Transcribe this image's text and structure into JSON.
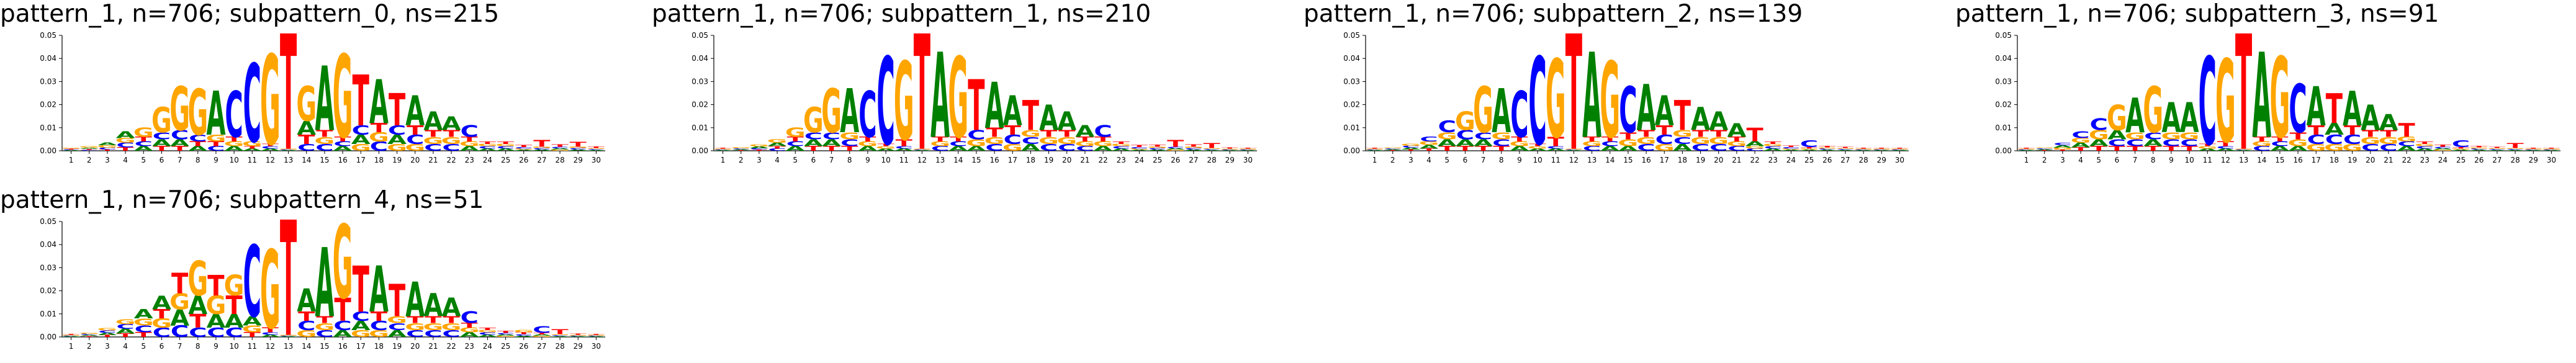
{
  "colors": {
    "A": "#008000",
    "C": "#0000ff",
    "G": "#ffa500",
    "T": "#ff0000"
  },
  "chart_data": [
    {
      "type": "sequence_logo",
      "title": "pattern_1, n=706; subpattern_0, ns=215",
      "yticks": [
        "0.00",
        "0.01",
        "0.02",
        "0.03",
        "0.04",
        "0.05"
      ],
      "ylim": [
        0,
        0.05
      ],
      "positions": [
        1,
        2,
        3,
        4,
        5,
        6,
        7,
        8,
        9,
        10,
        11,
        12,
        13,
        14,
        15,
        16,
        17,
        18,
        19,
        20,
        21,
        22,
        23,
        24,
        25,
        26,
        27,
        28,
        29,
        30
      ],
      "heights": [
        {
          "A": 0.0003,
          "C": 0.0003,
          "G": 0.0004,
          "T": 0.0003
        },
        {
          "A": 0.0005,
          "C": 0.0004,
          "G": 0.0006,
          "T": 0.0004
        },
        {
          "A": 0.0012,
          "C": 0.0008,
          "G": 0.001,
          "T": 0.0006
        },
        {
          "A": 0.003,
          "C": 0.002,
          "G": 0.002,
          "T": 0.0015
        },
        {
          "A": 0.002,
          "C": 0.002,
          "G": 0.004,
          "T": 0.002
        },
        {
          "A": 0.003,
          "C": 0.003,
          "G": 0.011,
          "T": 0.002
        },
        {
          "A": 0.003,
          "C": 0.004,
          "G": 0.019,
          "T": 0.002
        },
        {
          "A": 0.002,
          "C": 0.003,
          "G": 0.02,
          "T": 0.002
        },
        {
          "A": 0.019,
          "C": 0.002,
          "G": 0.003,
          "T": 0.002
        },
        {
          "A": 0.002,
          "C": 0.02,
          "G": 0.002,
          "T": 0.002
        },
        {
          "A": 0.001,
          "C": 0.034,
          "G": 0.002,
          "T": 0.001
        },
        {
          "A": 0.001,
          "C": 0.001,
          "G": 0.039,
          "T": 0.001
        },
        {
          "A": 0.0003,
          "C": 0.0003,
          "G": 0.0003,
          "T": 0.05
        },
        {
          "A": 0.006,
          "C": 0.003,
          "G": 0.015,
          "T": 0.004
        },
        {
          "A": 0.028,
          "C": 0.003,
          "G": 0.003,
          "T": 0.003
        },
        {
          "A": 0.002,
          "C": 0.002,
          "G": 0.036,
          "T": 0.002
        },
        {
          "A": 0.004,
          "C": 0.004,
          "G": 0.003,
          "T": 0.022
        },
        {
          "A": 0.019,
          "C": 0.004,
          "G": 0.004,
          "T": 0.004
        },
        {
          "A": 0.004,
          "C": 0.004,
          "G": 0.003,
          "T": 0.014
        },
        {
          "A": 0.013,
          "C": 0.004,
          "G": 0.003,
          "T": 0.004
        },
        {
          "A": 0.008,
          "C": 0.003,
          "G": 0.003,
          "T": 0.003
        },
        {
          "A": 0.006,
          "C": 0.003,
          "G": 0.003,
          "T": 0.003
        },
        {
          "A": 0.002,
          "C": 0.005,
          "G": 0.002,
          "T": 0.002
        },
        {
          "A": 0.001,
          "C": 0.001,
          "G": 0.001,
          "T": 0.001
        },
        {
          "A": 0.001,
          "C": 0.001,
          "G": 0.001,
          "T": 0.001
        },
        {
          "A": 0.0005,
          "C": 0.0006,
          "G": 0.0005,
          "T": 0.0008
        },
        {
          "A": 0.0006,
          "C": 0.0006,
          "G": 0.0006,
          "T": 0.003
        },
        {
          "A": 0.0006,
          "C": 0.0006,
          "G": 0.0005,
          "T": 0.001
        },
        {
          "A": 0.0006,
          "C": 0.0006,
          "G": 0.0006,
          "T": 0.002
        },
        {
          "A": 0.0004,
          "C": 0.0004,
          "G": 0.0004,
          "T": 0.0006
        }
      ]
    },
    {
      "type": "sequence_logo",
      "title": "pattern_1, n=706; subpattern_1, ns=210",
      "yticks": [
        "0.00",
        "0.01",
        "0.02",
        "0.03",
        "0.04",
        "0.05"
      ],
      "ylim": [
        0,
        0.05
      ],
      "positions": [
        1,
        2,
        3,
        4,
        5,
        6,
        7,
        8,
        9,
        10,
        11,
        12,
        13,
        14,
        15,
        16,
        17,
        18,
        19,
        20,
        21,
        22,
        23,
        24,
        25,
        26,
        27,
        28,
        29,
        30
      ],
      "heights": [
        {
          "A": 0.0003,
          "C": 0.0003,
          "G": 0.0003,
          "T": 0.0003
        },
        {
          "A": 0.0004,
          "C": 0.0004,
          "G": 0.0005,
          "T": 0.0003
        },
        {
          "A": 0.0008,
          "C": 0.0006,
          "G": 0.0008,
          "T": 0.0005
        },
        {
          "A": 0.0015,
          "C": 0.001,
          "G": 0.0015,
          "T": 0.001
        },
        {
          "A": 0.002,
          "C": 0.002,
          "G": 0.004,
          "T": 0.002
        },
        {
          "A": 0.003,
          "C": 0.003,
          "G": 0.011,
          "T": 0.002
        },
        {
          "A": 0.003,
          "C": 0.003,
          "G": 0.019,
          "T": 0.002
        },
        {
          "A": 0.019,
          "C": 0.003,
          "G": 0.003,
          "T": 0.002
        },
        {
          "A": 0.002,
          "C": 0.02,
          "G": 0.002,
          "T": 0.002
        },
        {
          "A": 0.001,
          "C": 0.038,
          "G": 0.001,
          "T": 0.001
        },
        {
          "A": 0.001,
          "C": 0.001,
          "G": 0.034,
          "T": 0.003
        },
        {
          "A": 0.0003,
          "C": 0.0003,
          "G": 0.0003,
          "T": 0.05
        },
        {
          "A": 0.037,
          "C": 0.002,
          "G": 0.002,
          "T": 0.002
        },
        {
          "A": 0.002,
          "C": 0.002,
          "G": 0.035,
          "T": 0.002
        },
        {
          "A": 0.002,
          "C": 0.004,
          "G": 0.003,
          "T": 0.022
        },
        {
          "A": 0.02,
          "C": 0.003,
          "G": 0.003,
          "T": 0.004
        },
        {
          "A": 0.013,
          "C": 0.004,
          "G": 0.003,
          "T": 0.004
        },
        {
          "A": 0.003,
          "C": 0.003,
          "G": 0.003,
          "T": 0.013
        },
        {
          "A": 0.011,
          "C": 0.003,
          "G": 0.003,
          "T": 0.003
        },
        {
          "A": 0.008,
          "C": 0.003,
          "G": 0.003,
          "T": 0.003
        },
        {
          "A": 0.005,
          "C": 0.002,
          "G": 0.002,
          "T": 0.002
        },
        {
          "A": 0.002,
          "C": 0.005,
          "G": 0.002,
          "T": 0.002
        },
        {
          "A": 0.001,
          "C": 0.001,
          "G": 0.001,
          "T": 0.001
        },
        {
          "A": 0.0005,
          "C": 0.0006,
          "G": 0.0005,
          "T": 0.0008
        },
        {
          "A": 0.0006,
          "C": 0.0006,
          "G": 0.0006,
          "T": 0.0008
        },
        {
          "A": 0.0006,
          "C": 0.0006,
          "G": 0.0005,
          "T": 0.003
        },
        {
          "A": 0.0006,
          "C": 0.0006,
          "G": 0.0006,
          "T": 0.001
        },
        {
          "A": 0.0004,
          "C": 0.0004,
          "G": 0.0004,
          "T": 0.002
        },
        {
          "A": 0.0003,
          "C": 0.0003,
          "G": 0.0003,
          "T": 0.0005
        },
        {
          "A": 0.0003,
          "C": 0.0003,
          "G": 0.0003,
          "T": 0.0004
        }
      ]
    },
    {
      "type": "sequence_logo",
      "title": "pattern_1, n=706; subpattern_2, ns=139",
      "yticks": [
        "0.00",
        "0.01",
        "0.02",
        "0.03",
        "0.04",
        "0.05"
      ],
      "ylim": [
        0,
        0.05
      ],
      "positions": [
        1,
        2,
        3,
        4,
        5,
        6,
        7,
        8,
        9,
        10,
        11,
        12,
        13,
        14,
        15,
        16,
        17,
        18,
        19,
        20,
        21,
        22,
        23,
        24,
        25,
        26,
        27,
        28,
        29,
        30
      ],
      "heights": [
        {
          "A": 0.0003,
          "C": 0.0003,
          "G": 0.0003,
          "T": 0.0003
        },
        {
          "A": 0.0004,
          "C": 0.0004,
          "G": 0.0004,
          "T": 0.0003
        },
        {
          "A": 0.0008,
          "C": 0.0008,
          "G": 0.0008,
          "T": 0.0006
        },
        {
          "A": 0.0015,
          "C": 0.002,
          "G": 0.0015,
          "T": 0.001
        },
        {
          "A": 0.003,
          "C": 0.005,
          "G": 0.003,
          "T": 0.002
        },
        {
          "A": 0.003,
          "C": 0.004,
          "G": 0.008,
          "T": 0.002
        },
        {
          "A": 0.003,
          "C": 0.003,
          "G": 0.02,
          "T": 0.002
        },
        {
          "A": 0.019,
          "C": 0.003,
          "G": 0.003,
          "T": 0.002
        },
        {
          "A": 0.002,
          "C": 0.02,
          "G": 0.002,
          "T": 0.002
        },
        {
          "A": 0.001,
          "C": 0.038,
          "G": 0.001,
          "T": 0.001
        },
        {
          "A": 0.001,
          "C": 0.001,
          "G": 0.034,
          "T": 0.004
        },
        {
          "A": 0.0003,
          "C": 0.0003,
          "G": 0.0003,
          "T": 0.05
        },
        {
          "A": 0.037,
          "C": 0.002,
          "G": 0.002,
          "T": 0.002
        },
        {
          "A": 0.002,
          "C": 0.002,
          "G": 0.033,
          "T": 0.002
        },
        {
          "A": 0.002,
          "C": 0.02,
          "G": 0.003,
          "T": 0.003
        },
        {
          "A": 0.02,
          "C": 0.003,
          "G": 0.003,
          "T": 0.003
        },
        {
          "A": 0.013,
          "C": 0.004,
          "G": 0.003,
          "T": 0.004
        },
        {
          "A": 0.003,
          "C": 0.003,
          "G": 0.003,
          "T": 0.013
        },
        {
          "A": 0.01,
          "C": 0.003,
          "G": 0.003,
          "T": 0.003
        },
        {
          "A": 0.008,
          "C": 0.003,
          "G": 0.003,
          "T": 0.003
        },
        {
          "A": 0.006,
          "C": 0.002,
          "G": 0.002,
          "T": 0.002
        },
        {
          "A": 0.002,
          "C": 0.001,
          "G": 0.001,
          "T": 0.006
        },
        {
          "A": 0.001,
          "C": 0.001,
          "G": 0.001,
          "T": 0.001
        },
        {
          "A": 0.0005,
          "C": 0.0006,
          "G": 0.0005,
          "T": 0.0006
        },
        {
          "A": 0.0005,
          "C": 0.003,
          "G": 0.0005,
          "T": 0.0006
        },
        {
          "A": 0.0005,
          "C": 0.0005,
          "G": 0.0005,
          "T": 0.0006
        },
        {
          "A": 0.0004,
          "C": 0.0004,
          "G": 0.0004,
          "T": 0.0005
        },
        {
          "A": 0.0003,
          "C": 0.0003,
          "G": 0.0003,
          "T": 0.0004
        },
        {
          "A": 0.0003,
          "C": 0.0003,
          "G": 0.0003,
          "T": 0.0003
        },
        {
          "A": 0.0003,
          "C": 0.0003,
          "G": 0.0003,
          "T": 0.0003
        }
      ]
    },
    {
      "type": "sequence_logo",
      "title": "pattern_1, n=706; subpattern_3, ns=91",
      "yticks": [
        "0.00",
        "0.01",
        "0.02",
        "0.03",
        "0.04",
        "0.05"
      ],
      "ylim": [
        0,
        0.05
      ],
      "positions": [
        1,
        2,
        3,
        4,
        5,
        6,
        7,
        8,
        9,
        10,
        11,
        12,
        13,
        14,
        15,
        16,
        17,
        18,
        19,
        20,
        21,
        22,
        23,
        24,
        25,
        26,
        27,
        28,
        29,
        30
      ],
      "heights": [
        {
          "A": 0.0003,
          "C": 0.0003,
          "G": 0.0003,
          "T": 0.0003
        },
        {
          "A": 0.0004,
          "C": 0.0004,
          "G": 0.0004,
          "T": 0.0003
        },
        {
          "A": 0.001,
          "C": 0.001,
          "G": 0.0008,
          "T": 0.0006
        },
        {
          "A": 0.002,
          "C": 0.003,
          "G": 0.002,
          "T": 0.0015
        },
        {
          "A": 0.003,
          "C": 0.005,
          "G": 0.004,
          "T": 0.002
        },
        {
          "A": 0.004,
          "C": 0.003,
          "G": 0.011,
          "T": 0.002
        },
        {
          "A": 0.015,
          "C": 0.003,
          "G": 0.003,
          "T": 0.002
        },
        {
          "A": 0.003,
          "C": 0.003,
          "G": 0.02,
          "T": 0.002
        },
        {
          "A": 0.013,
          "C": 0.003,
          "G": 0.003,
          "T": 0.002
        },
        {
          "A": 0.013,
          "C": 0.003,
          "G": 0.003,
          "T": 0.002
        },
        {
          "A": 0.001,
          "C": 0.038,
          "G": 0.001,
          "T": 0.001
        },
        {
          "A": 0.001,
          "C": 0.001,
          "G": 0.036,
          "T": 0.002
        },
        {
          "A": 0.0003,
          "C": 0.0003,
          "G": 0.0003,
          "T": 0.05
        },
        {
          "A": 0.037,
          "C": 0.002,
          "G": 0.002,
          "T": 0.002
        },
        {
          "A": 0.002,
          "C": 0.002,
          "G": 0.035,
          "T": 0.002
        },
        {
          "A": 0.002,
          "C": 0.021,
          "G": 0.003,
          "T": 0.003
        },
        {
          "A": 0.017,
          "C": 0.004,
          "G": 0.003,
          "T": 0.004
        },
        {
          "A": 0.005,
          "C": 0.004,
          "G": 0.003,
          "T": 0.013
        },
        {
          "A": 0.015,
          "C": 0.004,
          "G": 0.003,
          "T": 0.004
        },
        {
          "A": 0.011,
          "C": 0.003,
          "G": 0.003,
          "T": 0.003
        },
        {
          "A": 0.007,
          "C": 0.003,
          "G": 0.003,
          "T": 0.003
        },
        {
          "A": 0.002,
          "C": 0.002,
          "G": 0.002,
          "T": 0.006
        },
        {
          "A": 0.001,
          "C": 0.001,
          "G": 0.001,
          "T": 0.001
        },
        {
          "A": 0.0006,
          "C": 0.0006,
          "G": 0.0005,
          "T": 0.0008
        },
        {
          "A": 0.0005,
          "C": 0.003,
          "G": 0.0005,
          "T": 0.0006
        },
        {
          "A": 0.0005,
          "C": 0.0005,
          "G": 0.0005,
          "T": 0.0006
        },
        {
          "A": 0.0004,
          "C": 0.0004,
          "G": 0.0004,
          "T": 0.0005
        },
        {
          "A": 0.0004,
          "C": 0.0004,
          "G": 0.0004,
          "T": 0.002
        },
        {
          "A": 0.0003,
          "C": 0.0003,
          "G": 0.0003,
          "T": 0.0004
        },
        {
          "A": 0.0003,
          "C": 0.0003,
          "G": 0.0003,
          "T": 0.0003
        }
      ]
    },
    {
      "type": "sequence_logo",
      "title": "pattern_1, n=706; subpattern_4, ns=51",
      "yticks": [
        "0.00",
        "0.01",
        "0.02",
        "0.03",
        "0.04",
        "0.05"
      ],
      "ylim": [
        0,
        0.05
      ],
      "positions": [
        1,
        2,
        3,
        4,
        5,
        6,
        7,
        8,
        9,
        10,
        11,
        12,
        13,
        14,
        15,
        16,
        17,
        18,
        19,
        20,
        21,
        22,
        23,
        24,
        25,
        26,
        27,
        28,
        29,
        30
      ],
      "heights": [
        {
          "A": 0.0003,
          "C": 0.0003,
          "G": 0.0003,
          "T": 0.0003
        },
        {
          "A": 0.0005,
          "C": 0.0005,
          "G": 0.0005,
          "T": 0.0004
        },
        {
          "A": 0.001,
          "C": 0.001,
          "G": 0.001,
          "T": 0.0008
        },
        {
          "A": 0.002,
          "C": 0.002,
          "G": 0.002,
          "T": 0.0015
        },
        {
          "A": 0.004,
          "C": 0.003,
          "G": 0.003,
          "T": 0.002
        },
        {
          "A": 0.006,
          "C": 0.004,
          "G": 0.004,
          "T": 0.004
        },
        {
          "A": 0.007,
          "C": 0.005,
          "G": 0.007,
          "T": 0.009
        },
        {
          "A": 0.008,
          "C": 0.004,
          "G": 0.015,
          "T": 0.006
        },
        {
          "A": 0.006,
          "C": 0.004,
          "G": 0.008,
          "T": 0.009
        },
        {
          "A": 0.006,
          "C": 0.004,
          "G": 0.009,
          "T": 0.008
        },
        {
          "A": 0.004,
          "C": 0.031,
          "G": 0.003,
          "T": 0.002
        },
        {
          "A": 0.001,
          "C": 0.001,
          "G": 0.034,
          "T": 0.002
        },
        {
          "A": 0.0003,
          "C": 0.0003,
          "G": 0.0003,
          "T": 0.05
        },
        {
          "A": 0.01,
          "C": 0.004,
          "G": 0.003,
          "T": 0.004
        },
        {
          "A": 0.03,
          "C": 0.003,
          "G": 0.003,
          "T": 0.003
        },
        {
          "A": 0.003,
          "C": 0.004,
          "G": 0.032,
          "T": 0.01
        },
        {
          "A": 0.004,
          "C": 0.004,
          "G": 0.003,
          "T": 0.02
        },
        {
          "A": 0.02,
          "C": 0.004,
          "G": 0.003,
          "T": 0.004
        },
        {
          "A": 0.003,
          "C": 0.003,
          "G": 0.003,
          "T": 0.014
        },
        {
          "A": 0.015,
          "C": 0.003,
          "G": 0.003,
          "T": 0.003
        },
        {
          "A": 0.01,
          "C": 0.003,
          "G": 0.003,
          "T": 0.003
        },
        {
          "A": 0.008,
          "C": 0.003,
          "G": 0.003,
          "T": 0.003
        },
        {
          "A": 0.002,
          "C": 0.005,
          "G": 0.002,
          "T": 0.002
        },
        {
          "A": 0.001,
          "C": 0.001,
          "G": 0.001,
          "T": 0.001
        },
        {
          "A": 0.0006,
          "C": 0.0006,
          "G": 0.0005,
          "T": 0.0008
        },
        {
          "A": 0.0006,
          "C": 0.0006,
          "G": 0.001,
          "T": 0.0008
        },
        {
          "A": 0.0006,
          "C": 0.003,
          "G": 0.0005,
          "T": 0.0006
        },
        {
          "A": 0.0004,
          "C": 0.0004,
          "G": 0.0004,
          "T": 0.002
        },
        {
          "A": 0.0003,
          "C": 0.0003,
          "G": 0.0003,
          "T": 0.0005
        },
        {
          "A": 0.0003,
          "C": 0.0003,
          "G": 0.0003,
          "T": 0.0004
        }
      ]
    }
  ]
}
